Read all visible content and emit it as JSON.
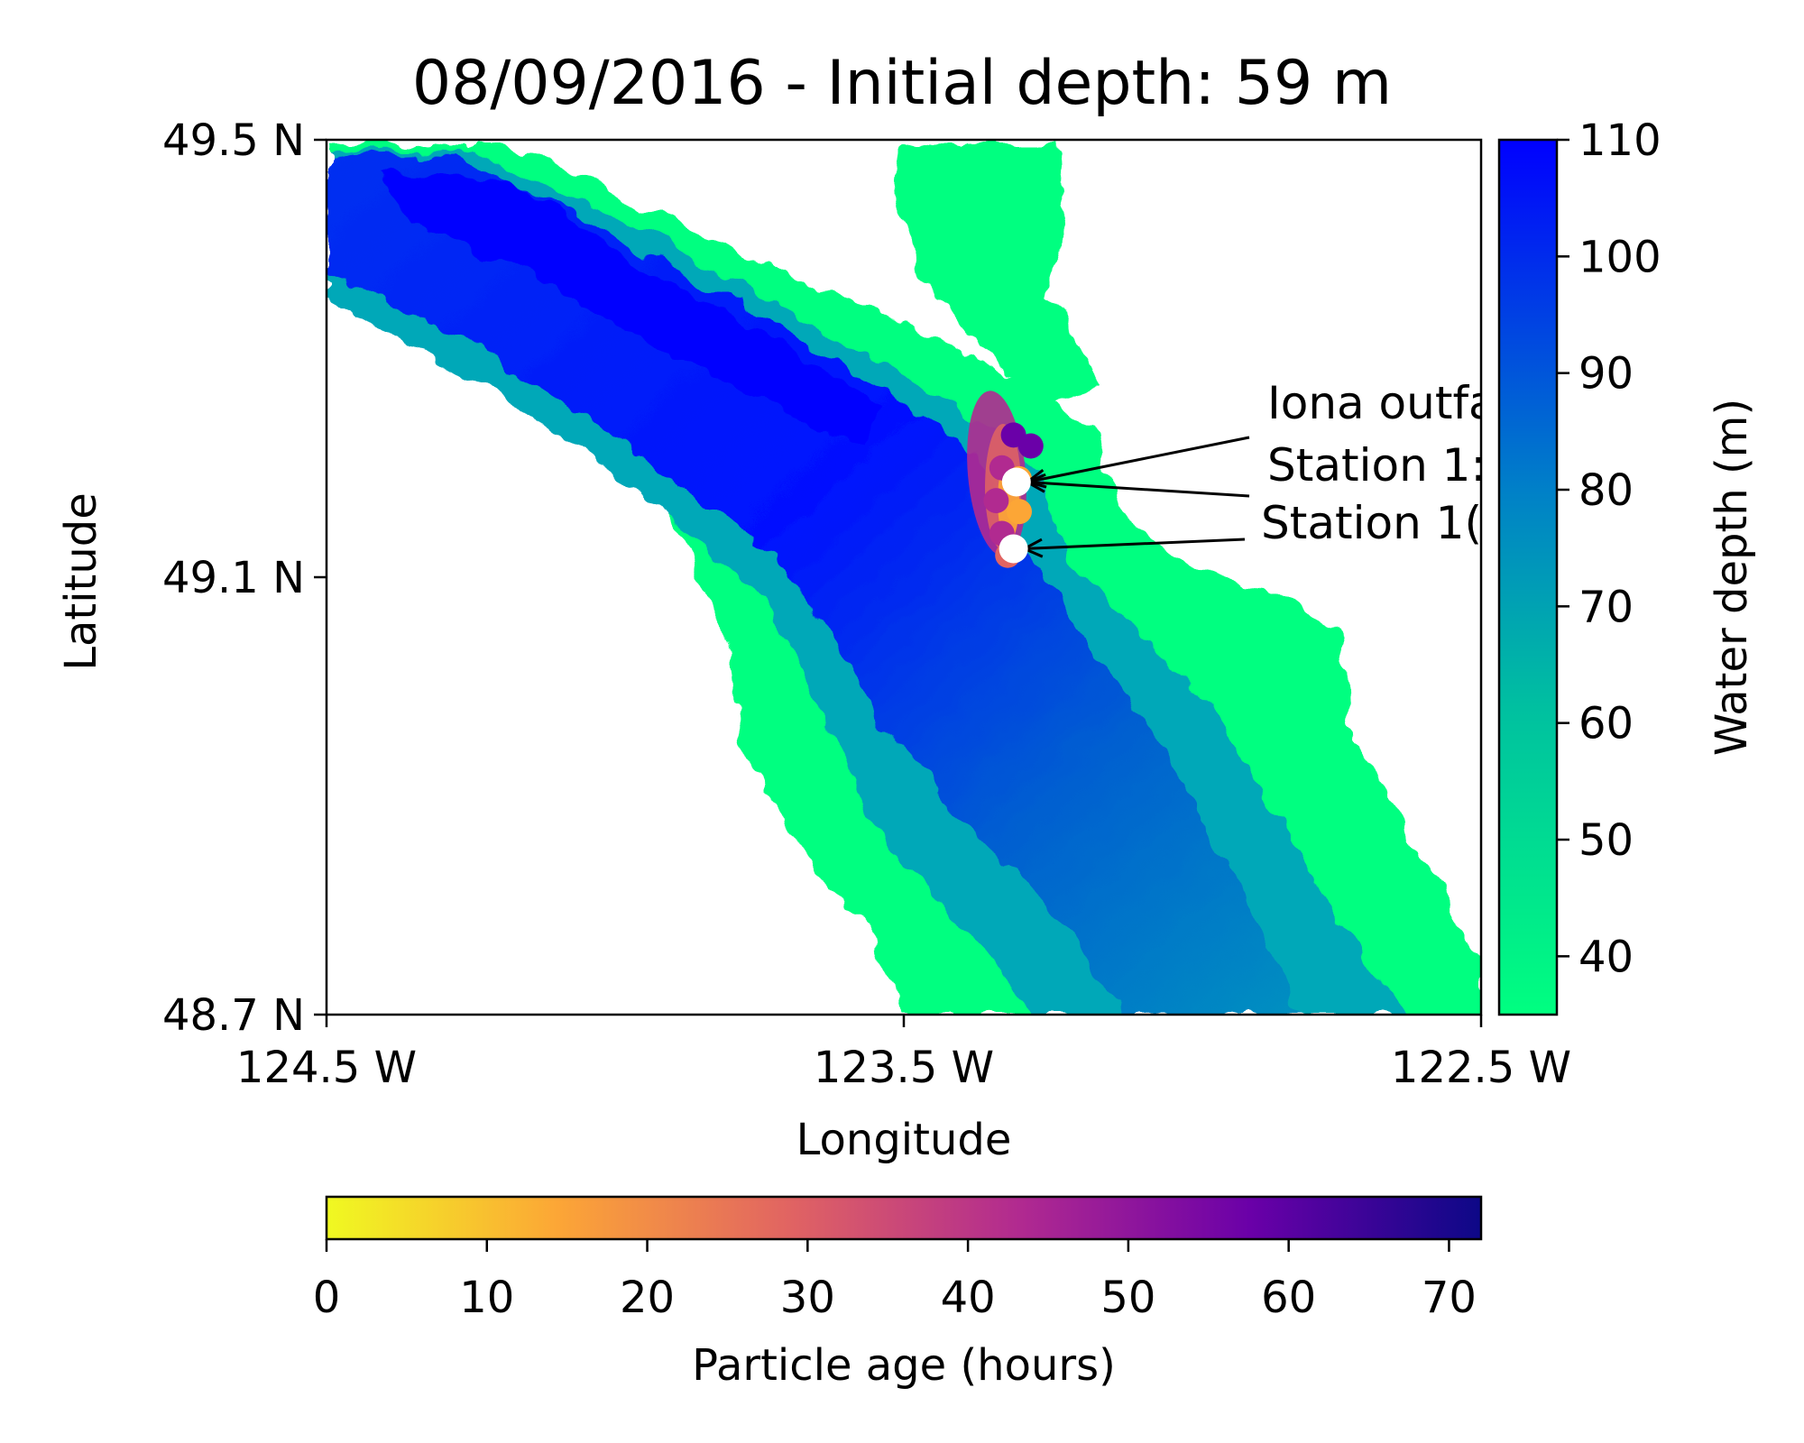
{
  "title": "08/09/2016 - Initial depth: 59 m",
  "map": {
    "x_axis": {
      "label": "Longitude",
      "range": [
        -124.5,
        -122.5
      ],
      "ticks": [
        {
          "value": -124.5,
          "label": "124.5 W"
        },
        {
          "value": -123.5,
          "label": "123.5 W"
        },
        {
          "value": -122.5,
          "label": "122.5 W"
        }
      ]
    },
    "y_axis": {
      "label": "Latitude",
      "range": [
        48.7,
        49.5
      ],
      "ticks": [
        {
          "value": 49.5,
          "label": "49.5 N"
        },
        {
          "value": 49.1,
          "label": "49.1 N"
        },
        {
          "value": 48.7,
          "label": "48.7 N"
        }
      ]
    },
    "bathymetry_colors": {
      "shallow": "#00ff80",
      "deep": "#0000ff"
    },
    "annotations": [
      {
        "text": "Iona outfa",
        "target": [
          -123.305,
          49.187
        ]
      },
      {
        "text": "Station 1:",
        "target": [
          -123.305,
          49.187
        ]
      },
      {
        "text": "Station 1(",
        "target": [
          -123.31,
          49.126
        ]
      }
    ],
    "markers": [
      {
        "name": "Station A",
        "lon": -123.305,
        "lat": 49.187
      },
      {
        "name": "Station B",
        "lon": -123.31,
        "lat": 49.126
      }
    ]
  },
  "depth_colorbar": {
    "label": "Water depth (m)",
    "range": [
      35,
      110
    ],
    "ticks": [
      40,
      50,
      60,
      70,
      80,
      90,
      100,
      110
    ],
    "colors": [
      "#00ff80",
      "#0000ff"
    ]
  },
  "age_colorbar": {
    "label": "Particle age (hours)",
    "range": [
      0,
      72
    ],
    "ticks": [
      0,
      10,
      20,
      30,
      40,
      50,
      60,
      70
    ],
    "colors": [
      "#f0f921",
      "#fca636",
      "#e16462",
      "#b12a90",
      "#6a00a8",
      "#0d0887"
    ]
  },
  "particles": {
    "cloud": [
      {
        "lon": -123.31,
        "lat": 49.23,
        "age": 60
      },
      {
        "lon": -123.33,
        "lat": 49.2,
        "age": 50
      },
      {
        "lon": -123.34,
        "lat": 49.17,
        "age": 45
      },
      {
        "lon": -123.33,
        "lat": 49.14,
        "age": 40
      },
      {
        "lon": -123.3,
        "lat": 49.19,
        "age": 15
      },
      {
        "lon": -123.3,
        "lat": 49.16,
        "age": 8
      },
      {
        "lon": -123.32,
        "lat": 49.12,
        "age": 35
      },
      {
        "lon": -123.28,
        "lat": 49.22,
        "age": 55
      }
    ]
  }
}
